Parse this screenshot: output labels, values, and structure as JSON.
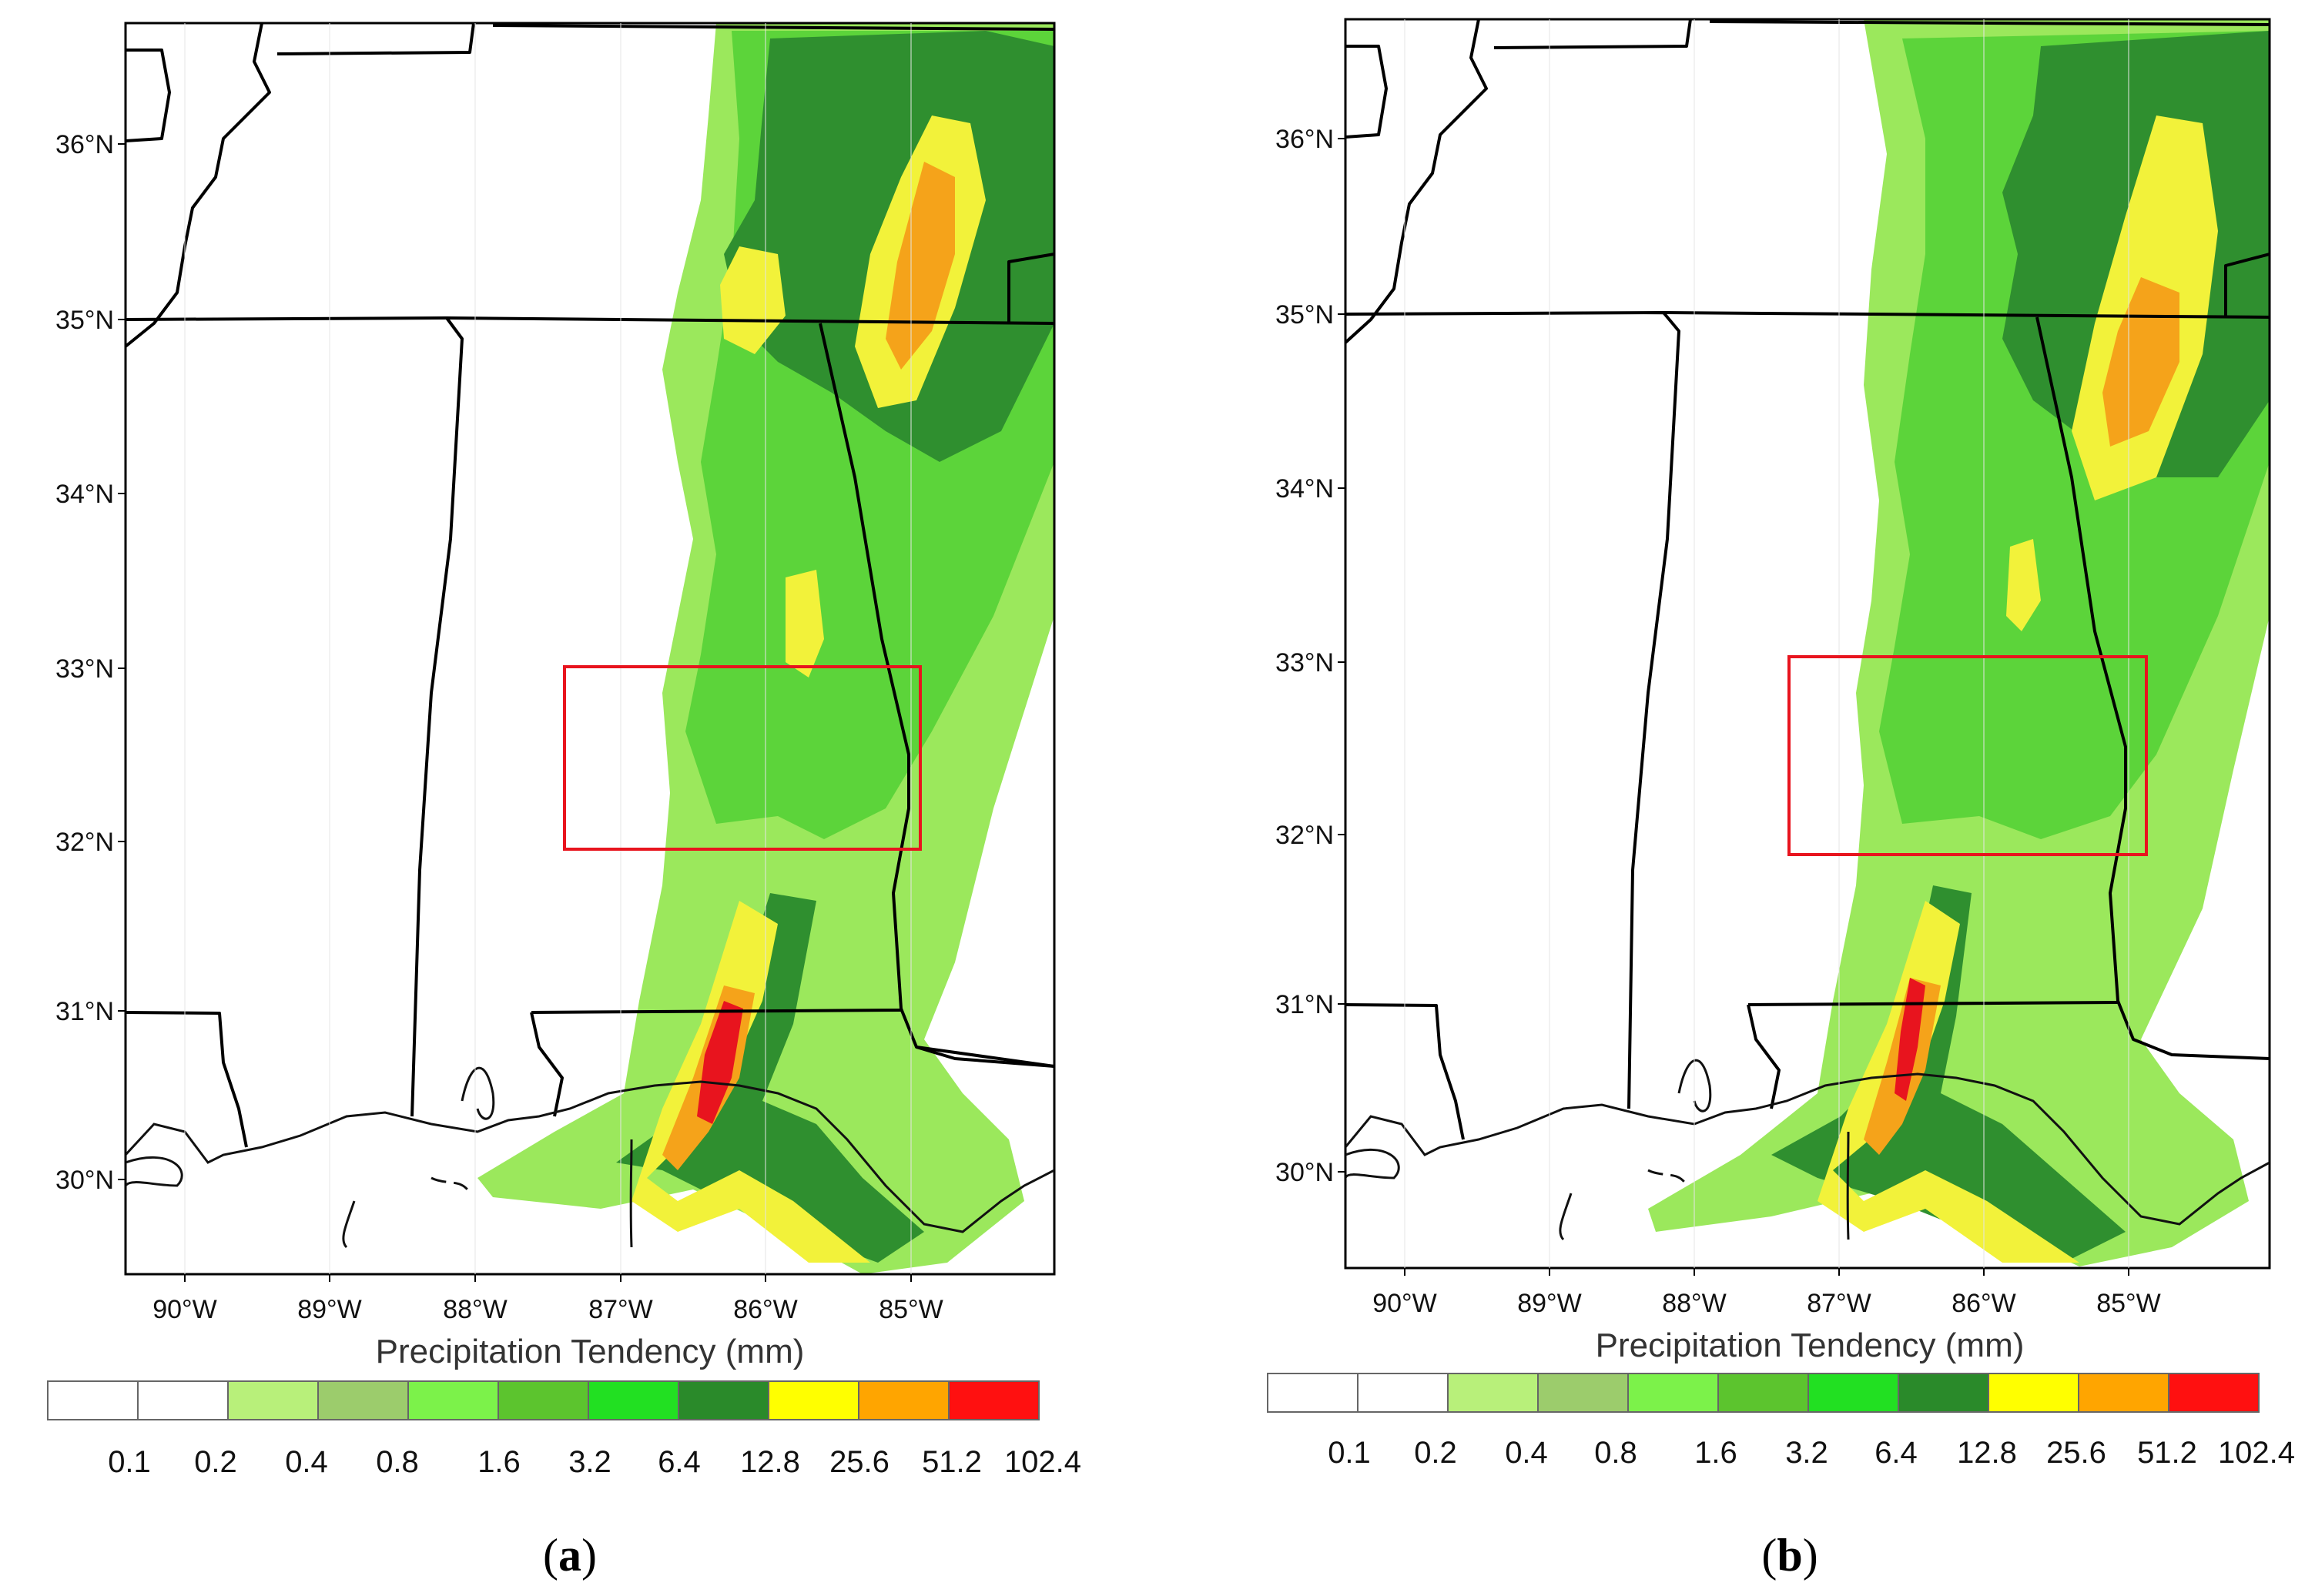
{
  "figure": {
    "panels": [
      {
        "label_open": "(",
        "label_letter": "a",
        "label_close": ")",
        "lat_labels": [
          "36°N",
          "35°N",
          "34°N",
          "33°N",
          "32°N",
          "31°N",
          "30°N"
        ],
        "lon_labels": [
          "90°W",
          "89°W",
          "88°W",
          "87°W",
          "86°W",
          "85°W"
        ],
        "colorbar_title": "Precipitation Tendency  (mm)",
        "colorbar_values": [
          "0.1",
          "0.2",
          "0.4",
          "0.8",
          "1.6",
          "3.2",
          "6.4",
          "12.8",
          "25.6",
          "51.2",
          "102.4"
        ]
      },
      {
        "label_open": "(",
        "label_letter": "b",
        "label_close": ")",
        "lat_labels": [
          "36°N",
          "35°N",
          "34°N",
          "33°N",
          "32°N",
          "31°N",
          "30°N"
        ],
        "lon_labels": [
          "90°W",
          "89°W",
          "88°W",
          "87°W",
          "86°W",
          "85°W"
        ],
        "colorbar_title": "Precipitation Tendency  (mm)",
        "colorbar_values": [
          "0.1",
          "0.2",
          "0.4",
          "0.8",
          "1.6",
          "3.2",
          "6.4",
          "12.8",
          "25.6",
          "51.2",
          "102.4"
        ]
      }
    ],
    "colorbar_colors": [
      "#ffffff",
      "#ffffff",
      "#b8f07a",
      "#9ccc6c",
      "#7cf24a",
      "#5cc42e",
      "#22e022",
      "#2a8a2a",
      "#ffff00",
      "#ffa500",
      "#ff1010"
    ],
    "highlight_box_color": "#e8141e"
  }
}
